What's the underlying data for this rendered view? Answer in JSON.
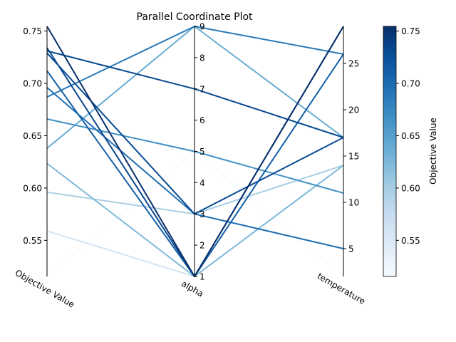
{
  "chart_data": {
    "type": "parallel_coordinates",
    "title": "Parallel Coordinate Plot",
    "colorbar_label": "Objective Value",
    "colormap": "Blues",
    "axes": [
      {
        "name": "Objective Value",
        "min": 0.5155,
        "max": 0.7545,
        "ticks": [
          0.55,
          0.6,
          0.65,
          0.7,
          0.75
        ],
        "tick_labels": [
          "0.55",
          "0.60",
          "0.65",
          "0.70",
          "0.75"
        ],
        "side": "left"
      },
      {
        "name": "alpha",
        "min": 1,
        "max": 9,
        "ticks": [
          1,
          2,
          3,
          4,
          5,
          6,
          7,
          8,
          9
        ],
        "tick_labels": [
          "1",
          "2",
          "3",
          "4",
          "5",
          "6",
          "7",
          "8",
          "9"
        ],
        "side": "right"
      },
      {
        "name": "temperature",
        "min": 2,
        "max": 29,
        "ticks": [
          5,
          10,
          15,
          20,
          25
        ],
        "tick_labels": [
          "5",
          "10",
          "15",
          "20",
          "25"
        ],
        "side": "right"
      }
    ],
    "colorbar": {
      "min": 0.5155,
      "max": 0.7545,
      "ticks": [
        0.55,
        0.6,
        0.65,
        0.7,
        0.75
      ],
      "tick_labels": [
        "0.55",
        "0.60",
        "0.65",
        "0.70",
        "0.75"
      ]
    },
    "lines": [
      {
        "objective": 0.5155,
        "alpha": 5.0,
        "temperature": 2.0
      },
      {
        "objective": 0.559,
        "alpha": 1.0,
        "temperature": 14.0
      },
      {
        "objective": 0.596,
        "alpha": 3.0,
        "temperature": 14.0
      },
      {
        "objective": 0.6235,
        "alpha": 1.0,
        "temperature": 14.0
      },
      {
        "objective": 0.638,
        "alpha": 9.0,
        "temperature": 17.0
      },
      {
        "objective": 0.666,
        "alpha": 5.0,
        "temperature": 11.0
      },
      {
        "objective": 0.687,
        "alpha": 9.0,
        "temperature": 26.0
      },
      {
        "objective": 0.696,
        "alpha": 3.0,
        "temperature": 5.0
      },
      {
        "objective": 0.712,
        "alpha": 1.0,
        "temperature": 26.0
      },
      {
        "objective": 0.729,
        "alpha": 3.0,
        "temperature": 17.0
      },
      {
        "objective": 0.731,
        "alpha": 7.0,
        "temperature": 17.0
      },
      {
        "objective": 0.734,
        "alpha": 1.0,
        "temperature": 29.0
      },
      {
        "objective": 0.7545,
        "alpha": 1.0,
        "temperature": 29.0
      }
    ]
  }
}
